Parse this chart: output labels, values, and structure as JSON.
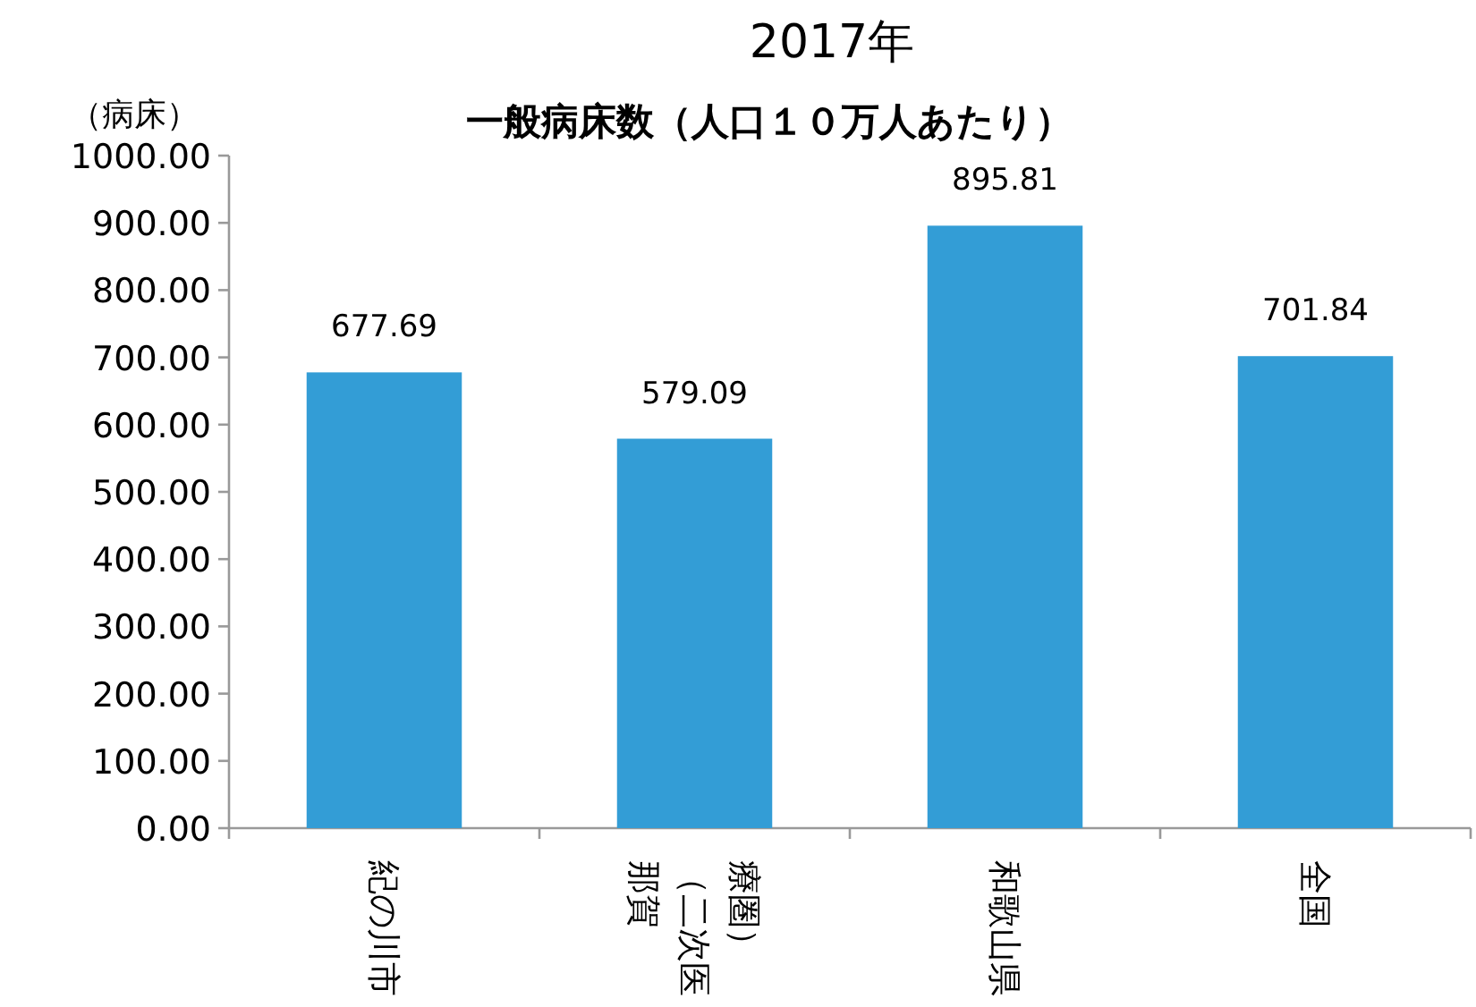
{
  "chart_data": {
    "type": "bar",
    "title": "2017年",
    "subtitle": "一般病床数（人口１０万人あたり）",
    "ylabel": "（病床）",
    "categories": [
      "紀の川市",
      "那賀（二次医療圏）",
      "和歌山県",
      "全国"
    ],
    "values": [
      677.69,
      579.09,
      895.81,
      701.84
    ],
    "color": "#339dd6",
    "ylim": [
      0,
      1000
    ],
    "yticks": [
      {
        "value": 0,
        "label": "0.00"
      },
      {
        "value": 100,
        "label": "100.00"
      },
      {
        "value": 200,
        "label": "200.00"
      },
      {
        "value": 300,
        "label": "300.00"
      },
      {
        "value": 400,
        "label": "400.00"
      },
      {
        "value": 500,
        "label": "500.00"
      },
      {
        "value": 600,
        "label": "600.00"
      },
      {
        "value": 700,
        "label": "700.00"
      },
      {
        "value": 800,
        "label": "800.00"
      },
      {
        "value": 900,
        "label": "900.00"
      },
      {
        "value": 1000,
        "label": "1000.00"
      }
    ],
    "data_labels": true,
    "grid": false
  }
}
